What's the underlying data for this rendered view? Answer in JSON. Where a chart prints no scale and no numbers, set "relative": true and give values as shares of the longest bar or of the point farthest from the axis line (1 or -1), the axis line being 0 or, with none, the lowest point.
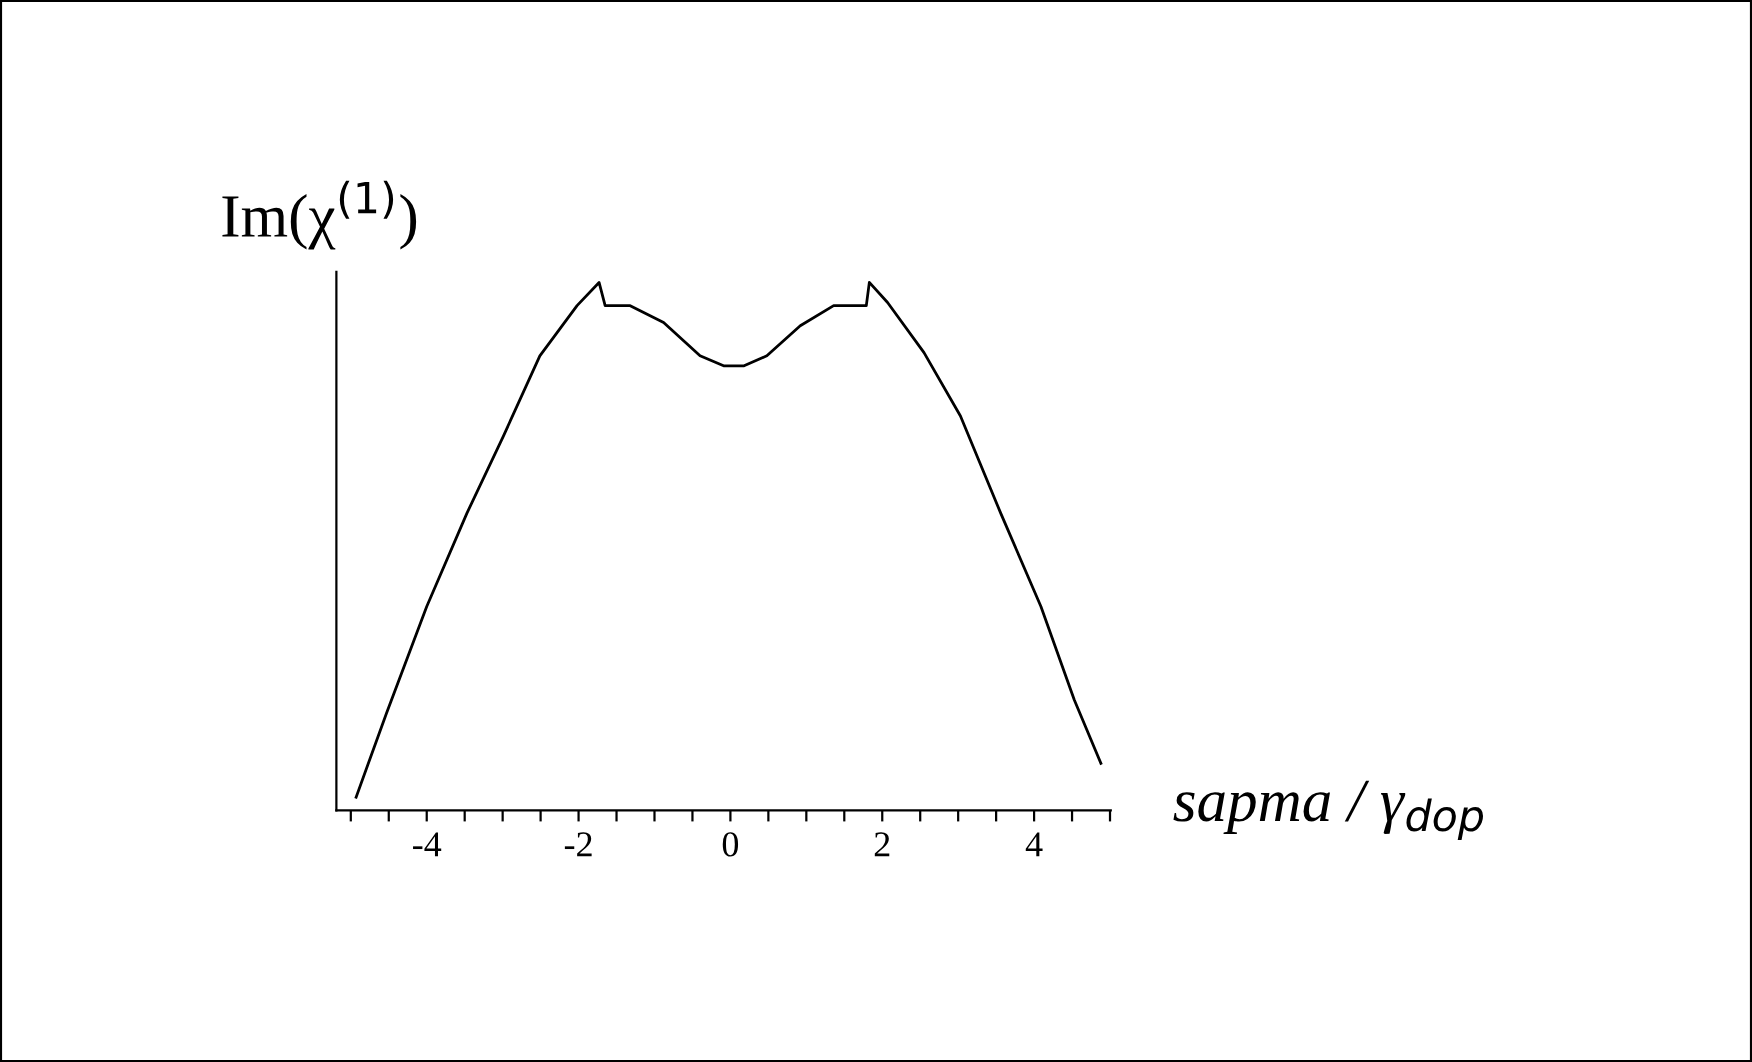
{
  "chart_data": {
    "type": "line",
    "relative": true,
    "xlabel": "sapma / γ$_{dop}$",
    "ylabel": "Im(χ$^{(1)}$)",
    "xlim": [
      -5.19,
      5.01
    ],
    "xticks": [
      {
        "value": -5,
        "label": null
      },
      {
        "value": -4.5,
        "label": null
      },
      -4,
      {
        "value": -3.5,
        "label": null
      },
      {
        "value": -3,
        "label": null
      },
      {
        "value": -2.5,
        "label": null
      },
      -2,
      {
        "value": -1.5,
        "label": null
      },
      {
        "value": -1,
        "label": null
      },
      {
        "value": -0.5,
        "label": null
      },
      0,
      {
        "value": 0.5,
        "label": null
      },
      {
        "value": 1,
        "label": null
      },
      {
        "value": 1.5,
        "label": null
      },
      2,
      {
        "value": 2.5,
        "label": null
      },
      {
        "value": 3,
        "label": null
      },
      {
        "value": 3.5,
        "label": null
      },
      4,
      {
        "value": 4.5,
        "label": null
      },
      {
        "value": 5,
        "label": null
      }
    ],
    "grid": false,
    "legend": false,
    "tick_labels": "x",
    "marker": "none",
    "line_style": "solid",
    "series": [
      {
        "color": "#000000",
        "x": [
          -4.93,
          -4.53,
          -4.0,
          -3.47,
          -2.99,
          -2.51,
          -2.02,
          -1.73,
          -1.65,
          -1.32,
          -0.88,
          -0.4,
          -0.09,
          0.18,
          0.48,
          0.92,
          1.36,
          1.79,
          1.83,
          2.07,
          2.55,
          3.03,
          3.56,
          4.09,
          4.53,
          4.88
        ],
        "values": [
          0.025,
          0.184,
          0.386,
          0.563,
          0.709,
          0.861,
          0.956,
          1.0,
          0.956,
          0.956,
          0.924,
          0.861,
          0.842,
          0.842,
          0.861,
          0.918,
          0.956,
          0.956,
          1.0,
          0.962,
          0.867,
          0.747,
          0.563,
          0.386,
          0.209,
          0.089
        ]
      }
    ]
  }
}
